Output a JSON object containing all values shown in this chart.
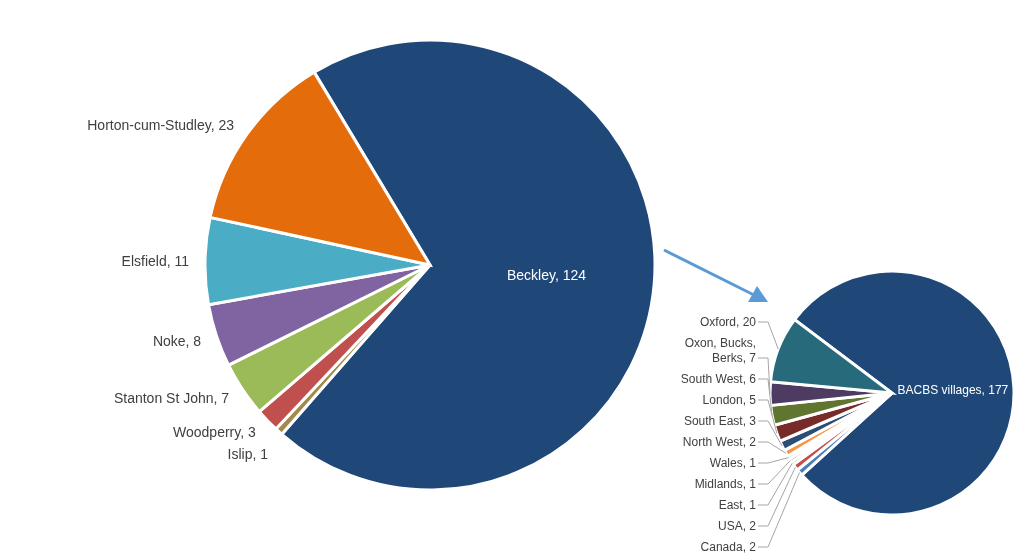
{
  "chart_data": [
    {
      "type": "pie",
      "categories": [
        "Beckley",
        "Islip",
        "Woodperry",
        "Stanton St John",
        "Noke",
        "Elsfield",
        "Horton-cum-Studley"
      ],
      "values": [
        124,
        1,
        3,
        7,
        8,
        11,
        23
      ],
      "colors": [
        "#1f4778",
        "#a08a4c",
        "#c0504d",
        "#9bbb59",
        "#8064a2",
        "#4bacc6",
        "#e46c0a"
      ],
      "value_labels": [
        ", 124",
        ", 1",
        ", 3",
        ", 7",
        ", 8",
        ", 11",
        ", 23"
      ]
    },
    {
      "type": "pie",
      "categories": [
        "BACBS villages",
        "Canada",
        "USA",
        "East",
        "Midlands",
        "Wales",
        "North West",
        "South East",
        "London",
        "South West",
        "Oxon, Bucks, Berks",
        "Oxford"
      ],
      "values": [
        177,
        2,
        2,
        1,
        1,
        1,
        2,
        3,
        5,
        6,
        7,
        20
      ],
      "colors": [
        "#1f4778",
        "#4a7ebb",
        "#c0504d",
        "#9bbb59",
        "#8064a2",
        "#4bacc6",
        "#f79646",
        "#2c4d75",
        "#772c2a",
        "#5f7530",
        "#4d3b62",
        "#276a7c"
      ],
      "value_labels": [
        ", 177",
        ", 2",
        ", 2",
        ", 1",
        ", 1",
        ", 1",
        ", 2",
        ", 3",
        ", 5",
        ", 6",
        ", 7",
        ", 20"
      ]
    }
  ]
}
